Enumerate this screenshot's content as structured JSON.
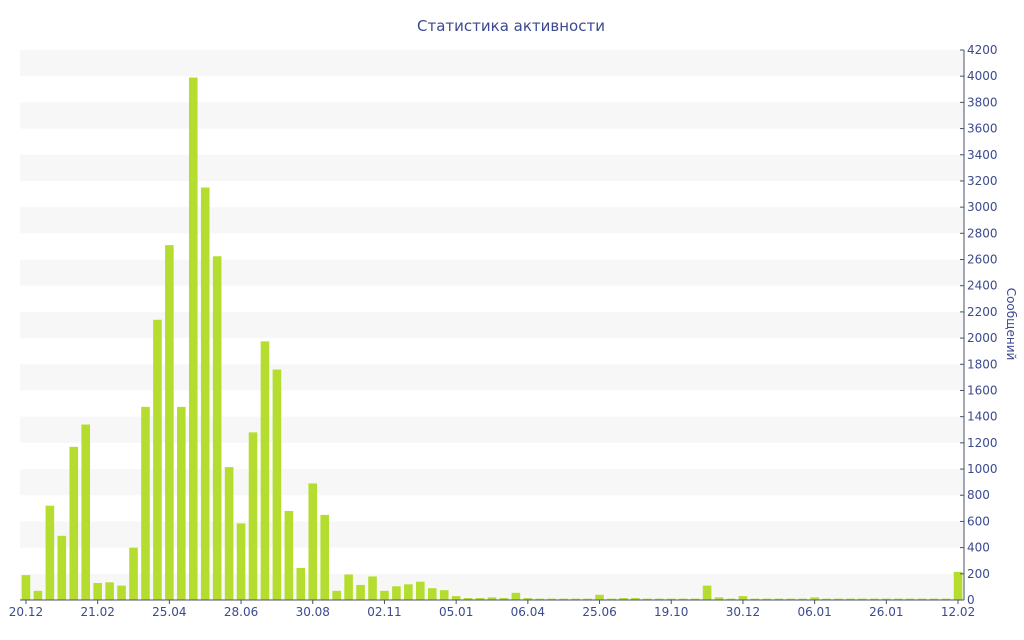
{
  "chart_data": {
    "type": "bar",
    "title": "Статистика активности",
    "xlabel": "",
    "ylabel": "Сообщений",
    "ylim": [
      0,
      4200
    ],
    "y_ticks": [
      0,
      200,
      400,
      600,
      800,
      1000,
      1200,
      1400,
      1600,
      1800,
      2000,
      2200,
      2400,
      2600,
      2800,
      3000,
      3200,
      3400,
      3600,
      3800,
      4000,
      4200
    ],
    "y_axis_position": "right",
    "x_tick_labels": [
      {
        "label": "20.12",
        "index": 0
      },
      {
        "label": "21.02",
        "index": 6
      },
      {
        "label": "25.04",
        "index": 12
      },
      {
        "label": "28.06",
        "index": 18
      },
      {
        "label": "30.08",
        "index": 24
      },
      {
        "label": "02.11",
        "index": 30
      },
      {
        "label": "05.01",
        "index": 36
      },
      {
        "label": "06.04",
        "index": 42
      },
      {
        "label": "25.06",
        "index": 48
      },
      {
        "label": "19.10",
        "index": 54
      },
      {
        "label": "30.12",
        "index": 60
      },
      {
        "label": "06.01",
        "index": 66
      },
      {
        "label": "26.01",
        "index": 72
      },
      {
        "label": "12.02",
        "index": 78
      }
    ],
    "values": [
      190,
      70,
      720,
      490,
      1170,
      1340,
      130,
      135,
      110,
      400,
      1475,
      2140,
      2710,
      1475,
      3990,
      3150,
      2625,
      1015,
      585,
      1280,
      1975,
      1760,
      680,
      245,
      890,
      650,
      70,
      195,
      115,
      180,
      70,
      105,
      120,
      140,
      90,
      75,
      30,
      15,
      15,
      20,
      15,
      55,
      15,
      10,
      10,
      10,
      10,
      10,
      40,
      10,
      15,
      15,
      10,
      10,
      10,
      10,
      10,
      110,
      20,
      10,
      30,
      10,
      10,
      10,
      10,
      10,
      20,
      10,
      10,
      10,
      10,
      10,
      10,
      10,
      10,
      10,
      10,
      10,
      215
    ],
    "bar_color": "#b5dd2f",
    "band_color": "#f7f7f7",
    "text_color": "#3c4a8e",
    "axis_color": "#4a4f6a",
    "grid": "alternating-bands",
    "legend": "none"
  }
}
